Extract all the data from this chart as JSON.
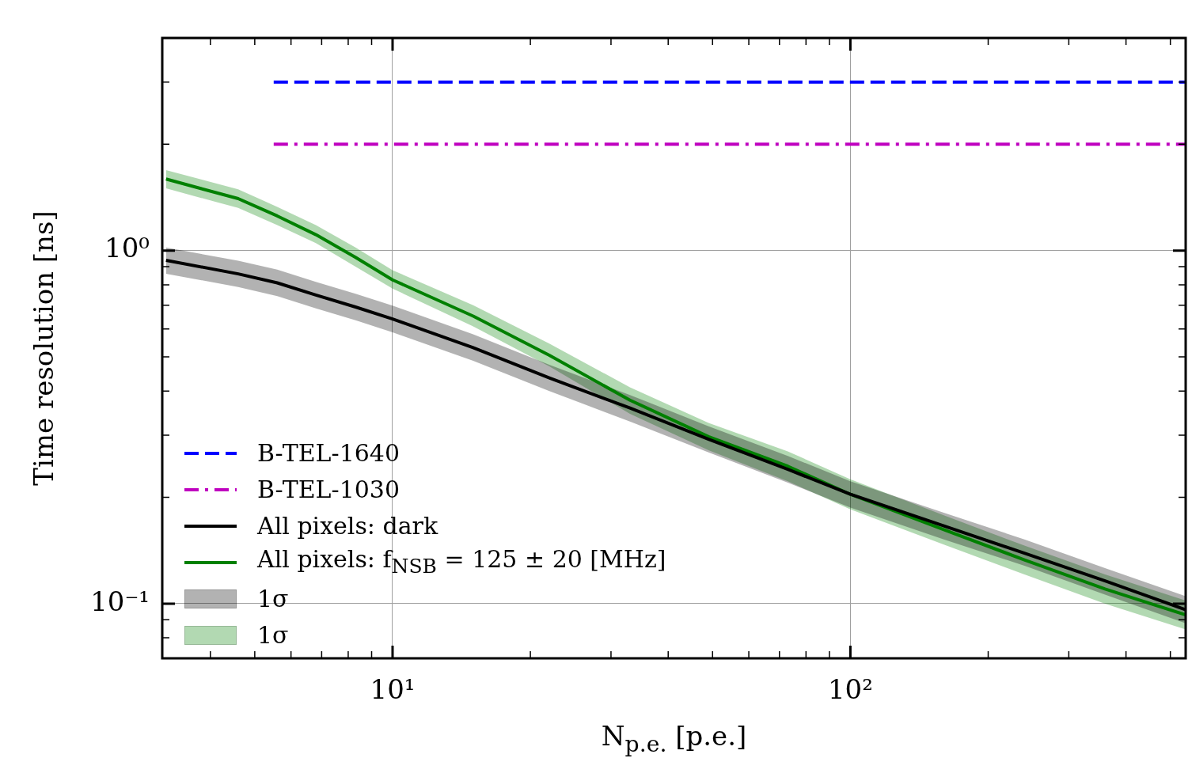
{
  "chart_data": {
    "type": "line",
    "xlabel": "N$_{p.e.}$ [p.e.]",
    "ylabel": "Time resolution [ns]",
    "log": "xy",
    "grid": true,
    "legend": "bottom left",
    "xlim": [
      3.14,
      540
    ],
    "ylim": [
      0.07,
      4.0
    ],
    "xticks": [
      {
        "value": 4,
        "label": null
      },
      {
        "value": 5,
        "label": null
      },
      {
        "value": 6,
        "label": null
      },
      {
        "value": 7,
        "label": null
      },
      {
        "value": 8,
        "label": null
      },
      {
        "value": 9,
        "label": null
      },
      {
        "value": 10,
        "label": "10¹"
      },
      {
        "value": 20,
        "label": null
      },
      {
        "value": 30,
        "label": null
      },
      {
        "value": 40,
        "label": null
      },
      {
        "value": 50,
        "label": null
      },
      {
        "value": 60,
        "label": null
      },
      {
        "value": 70,
        "label": null
      },
      {
        "value": 80,
        "label": null
      },
      {
        "value": 90,
        "label": null
      },
      {
        "value": 100,
        "label": "10²"
      },
      {
        "value": 200,
        "label": null
      },
      {
        "value": 300,
        "label": null
      },
      {
        "value": 400,
        "label": null
      },
      {
        "value": 500,
        "label": null
      }
    ],
    "yticks": [
      {
        "value": 0.08,
        "label": null
      },
      {
        "value": 0.09,
        "label": null
      },
      {
        "value": 0.1,
        "label": "10⁻¹"
      },
      {
        "value": 0.2,
        "label": null
      },
      {
        "value": 0.3,
        "label": null
      },
      {
        "value": 0.4,
        "label": null
      },
      {
        "value": 0.5,
        "label": null
      },
      {
        "value": 0.6,
        "label": null
      },
      {
        "value": 0.7,
        "label": null
      },
      {
        "value": 0.8,
        "label": null
      },
      {
        "value": 0.9,
        "label": null
      },
      {
        "value": 1,
        "label": "10⁰"
      },
      {
        "value": 2,
        "label": null
      },
      {
        "value": 3,
        "label": null
      },
      {
        "value": 4,
        "label": null
      }
    ],
    "annotations": [
      "1σ",
      "1σ"
    ],
    "series": [
      {
        "name": "B-TEL-1640",
        "color": "#0000ff",
        "line_style": "dashed",
        "x": [
          5.5,
          540
        ],
        "values": [
          3.0,
          3.0
        ]
      },
      {
        "name": "B-TEL-1030",
        "color": "#bf00bf",
        "line_style": "dashdot",
        "x": [
          5.5,
          540
        ],
        "values": [
          2.0,
          2.0
        ]
      },
      {
        "name": "All pixels: dark",
        "color": "#000000",
        "line_style": "solid",
        "x": [
          3.2,
          4.6,
          5.6,
          6.8,
          8.3,
          10,
          15,
          22,
          33,
          49,
          73,
          100,
          160,
          240,
          360,
          540
        ],
        "values": [
          0.938,
          0.859,
          0.81,
          0.748,
          0.692,
          0.64,
          0.531,
          0.436,
          0.358,
          0.292,
          0.24,
          0.204,
          0.166,
          0.139,
          0.116,
          0.0961
        ],
        "lower": [
          0.86,
          0.788,
          0.743,
          0.686,
          0.635,
          0.587,
          0.487,
          0.4,
          0.328,
          0.268,
          0.22,
          0.187,
          0.152,
          0.128,
          0.106,
          0.088
        ],
        "upper": [
          1.02,
          0.936,
          0.883,
          0.815,
          0.754,
          0.698,
          0.579,
          0.475,
          0.39,
          0.318,
          0.262,
          0.222,
          0.181,
          0.152,
          0.126,
          0.105
        ]
      },
      {
        "name": "All pixels: f$_{NSB}$ = 125 ± 20 [MHz]",
        "color": "#008000",
        "line_style": "solid",
        "x": [
          3.2,
          4.6,
          5.6,
          6.8,
          8.3,
          10,
          15,
          22,
          33,
          49,
          73,
          100,
          160,
          240,
          360,
          540
        ],
        "values": [
          1.594,
          1.403,
          1.253,
          1.109,
          0.957,
          0.826,
          0.652,
          0.505,
          0.377,
          0.297,
          0.245,
          0.204,
          0.162,
          0.133,
          0.11,
          0.0929
        ],
        "lower": [
          1.5,
          1.32,
          1.18,
          1.05,
          0.9,
          0.78,
          0.61,
          0.47,
          0.345,
          0.272,
          0.222,
          0.185,
          0.147,
          0.121,
          0.1,
          0.0845
        ],
        "upper": [
          1.69,
          1.49,
          1.33,
          1.18,
          1.02,
          0.88,
          0.7,
          0.545,
          0.41,
          0.325,
          0.27,
          0.225,
          0.178,
          0.146,
          0.121,
          0.102
        ]
      }
    ]
  }
}
